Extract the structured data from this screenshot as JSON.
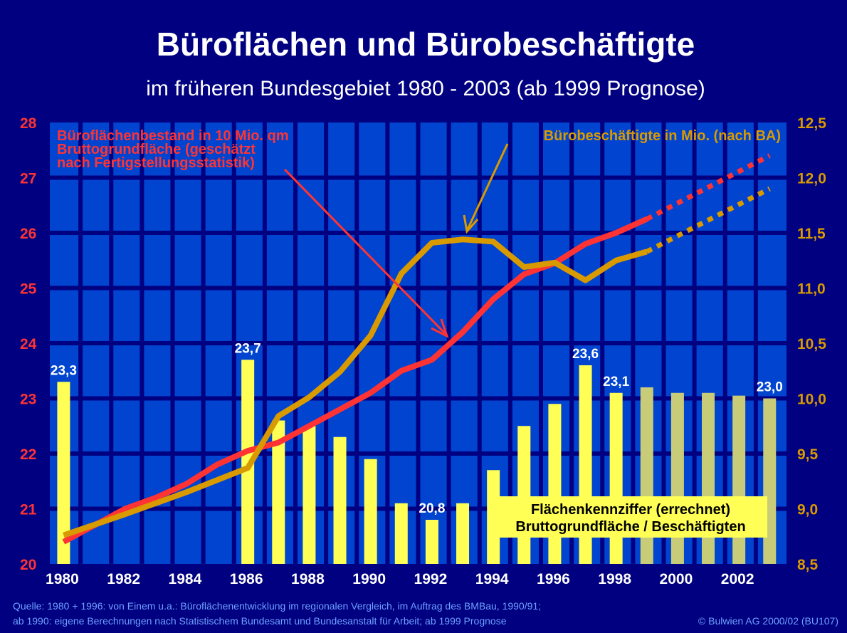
{
  "chart_data": {
    "type": "bar+line",
    "title": "Büroflächen und Bürobeschäftigte",
    "subtitle": "im früheren Bundesgebiet 1980 - 2003 (ab 1999 Prognose)",
    "x": [
      1980,
      1981,
      1982,
      1983,
      1984,
      1985,
      1986,
      1987,
      1988,
      1989,
      1990,
      1991,
      1992,
      1993,
      1994,
      1995,
      1996,
      1997,
      1998,
      1999,
      2000,
      2001,
      2002,
      2003
    ],
    "x_tick_labels": [
      "1980",
      "1982",
      "1984",
      "1986",
      "1988",
      "1990",
      "1992",
      "1994",
      "1996",
      "1998",
      "2000",
      "2002"
    ],
    "left_axis": {
      "ylim": [
        20,
        28
      ],
      "tick_labels": [
        "20",
        "21",
        "22",
        "23",
        "24",
        "25",
        "26",
        "27",
        "28"
      ],
      "color": "#ff3333"
    },
    "right_axis": {
      "ylim": [
        8.5,
        12.5
      ],
      "tick_labels": [
        "8,5",
        "9,0",
        "9,5",
        "10,0",
        "10,5",
        "11,0",
        "11,5",
        "12,0",
        "12,5"
      ],
      "color": "#d99a00"
    },
    "grid": true,
    "bars": {
      "name": "Flächenkennziffer (errechnet) Bruttogrundfläche / Beschäftigten",
      "axis": "left",
      "years": [
        1980,
        1986,
        1987,
        1988,
        1989,
        1990,
        1991,
        1992,
        1993,
        1994,
        1995,
        1996,
        1997,
        1998,
        1999,
        2000,
        2001,
        2002,
        2003
      ],
      "values": [
        23.3,
        23.7,
        22.6,
        22.5,
        22.3,
        21.9,
        21.1,
        20.8,
        21.1,
        21.7,
        22.5,
        22.9,
        23.6,
        23.1,
        23.2,
        23.1,
        23.1,
        23.05,
        23.0
      ],
      "forecast_from": 1999,
      "color": "#ffff55",
      "forecast_color": "#c8cc78"
    },
    "data_labels": [
      {
        "year": 1980,
        "text": "23,3"
      },
      {
        "year": 1986,
        "text": "23,7"
      },
      {
        "year": 1992,
        "text": "20,8"
      },
      {
        "year": 1997,
        "text": "23,6"
      },
      {
        "year": 1998,
        "text": "23,1"
      },
      {
        "year": 2003,
        "text": "23,0"
      }
    ],
    "series": [
      {
        "name": "Büroflächenbestand in 10 Mio. qm Bruttogrundfläche (geschätzt nach Fertigstellungsstatistik)",
        "legend_lines": [
          "Büroflächenbestand in 10 Mio. qm",
          "Bruttogrundfläche (geschätzt",
          "nach Fertigstellungsstatistik)"
        ],
        "axis": "left",
        "color": "#ff3333",
        "x": [
          1980,
          1981,
          1982,
          1983,
          1984,
          1985,
          1986,
          1987,
          1988,
          1989,
          1990,
          1991,
          1992,
          1993,
          1994,
          1995,
          1996,
          1997,
          1998,
          1999
        ],
        "values": [
          20.4,
          20.7,
          21.0,
          21.2,
          21.45,
          21.8,
          22.05,
          22.2,
          22.5,
          22.8,
          23.1,
          23.5,
          23.7,
          24.2,
          24.8,
          25.25,
          25.45,
          25.8,
          26.0,
          26.25
        ],
        "forecast": {
          "x": [
            1999,
            2003
          ],
          "values": [
            26.25,
            27.4
          ]
        }
      },
      {
        "name": "Bürobeschäftigte in Mio. (nach BA)",
        "legend_lines": [
          "Bürobeschäftigte in Mio. (nach BA)"
        ],
        "axis": "right",
        "color": "#d99a00",
        "x": [
          1980,
          1982,
          1984,
          1986,
          1987,
          1988,
          1989,
          1990,
          1991,
          1992,
          1993,
          1994,
          1995,
          1996,
          1997,
          1998,
          1999
        ],
        "values": [
          8.76,
          8.95,
          9.15,
          9.37,
          9.84,
          10.01,
          10.24,
          10.57,
          11.13,
          11.41,
          11.44,
          11.42,
          11.19,
          11.23,
          11.07,
          11.25,
          11.33
        ],
        "forecast": {
          "x": [
            1999,
            2003
          ],
          "values": [
            11.33,
            11.9
          ]
        }
      }
    ],
    "annotation_box": [
      "Flächenkennziffer (errechnet)",
      "Bruttogrundfläche / Beschäftigten"
    ],
    "footnote": [
      "Quelle: 1980 + 1996: von Einem u.a.: Büroflächenentwicklung im regionalen Vergleich, im Auftrag des BMBau, 1990/91;",
      "ab 1990: eigene Berechnungen nach Statistischem Bundesamt und Bundesanstalt für Arbeit; ab 1999 Prognose"
    ],
    "copyright": "© Bulwien AG 2000/02 (BU107)"
  }
}
